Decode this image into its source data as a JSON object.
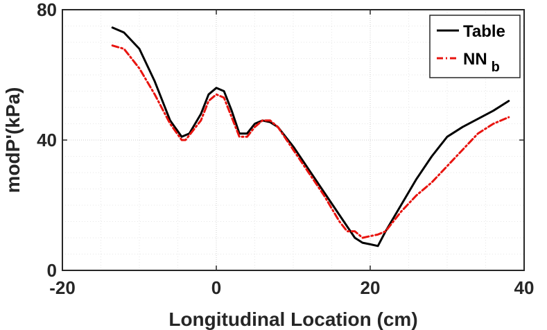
{
  "chart_data": {
    "type": "line",
    "title": "",
    "xlabel": "Longitudinal Location (cm)",
    "ylabel": "modP'(kPa)",
    "xlim": [
      -20,
      40
    ],
    "ylim": [
      0,
      80
    ],
    "xticks": [
      "-20",
      "0",
      "20",
      "40"
    ],
    "yticks": [
      "0",
      "40",
      "80"
    ],
    "grid": "dotted, minor and major",
    "legend_position": "top-right",
    "series": [
      {
        "name": "Table",
        "subscript": "",
        "color": "#000000",
        "style": "solid",
        "x": [
          -13.5,
          -12,
          -10,
          -8,
          -6,
          -4.5,
          -3.5,
          -2,
          -1,
          0,
          1,
          2,
          3,
          4,
          5,
          6,
          7,
          8,
          10,
          12,
          14,
          16,
          18,
          19,
          20,
          21,
          22,
          24,
          26,
          28,
          30,
          32,
          34,
          36,
          38
        ],
        "y": [
          74.5,
          73,
          68,
          58,
          46,
          41,
          42,
          48,
          54,
          56,
          55,
          49,
          42,
          42,
          45,
          46,
          45.5,
          44,
          38,
          31,
          24,
          17,
          10,
          8.5,
          8,
          7.5,
          12,
          20,
          28,
          35,
          41,
          44,
          46.5,
          49,
          52
        ]
      },
      {
        "name": "NN",
        "subscript": "b",
        "color": "#e8140f",
        "style": "dash-dot",
        "x": [
          -13.5,
          -12,
          -10,
          -8,
          -6,
          -4.5,
          -4,
          -2,
          -1,
          0,
          1,
          2,
          3,
          4,
          5,
          6,
          7,
          8,
          10,
          12,
          14,
          16,
          17,
          18,
          19,
          20,
          21,
          22,
          24,
          26,
          28,
          30,
          32,
          34,
          36,
          38
        ],
        "y": [
          69,
          68,
          62,
          54,
          45,
          40,
          40,
          46,
          52,
          54,
          53,
          47,
          41,
          41,
          44,
          46,
          46,
          44,
          37,
          30,
          23,
          15,
          12,
          12,
          10,
          10.5,
          11,
          12,
          18,
          23,
          27,
          32,
          37,
          42,
          45,
          47
        ]
      }
    ]
  }
}
